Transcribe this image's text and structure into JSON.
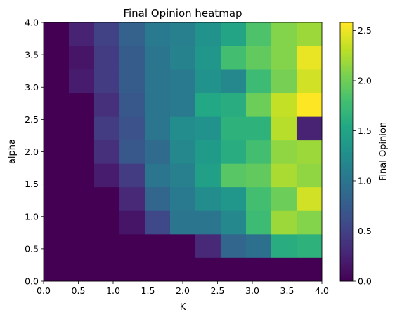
{
  "chart_data": {
    "type": "heatmap",
    "title": "Final Opinion heatmap",
    "xlabel": "K",
    "ylabel": "alpha",
    "colorbar_label": "Final Opinion",
    "colormap": "viridis",
    "xlim": [
      0,
      4
    ],
    "ylim": [
      0,
      4
    ],
    "vmin": 0,
    "vmax": 2.58,
    "x_ticks": [
      "0.0",
      "0.5",
      "1.0",
      "1.5",
      "2.0",
      "2.5",
      "3.0",
      "3.5",
      "4.0"
    ],
    "y_ticks": [
      "0.0",
      "0.5",
      "1.0",
      "1.5",
      "2.0",
      "2.5",
      "3.0",
      "3.5",
      "4.0"
    ],
    "colorbar_ticks": [
      "0.0",
      "0.5",
      "1.0",
      "1.5",
      "2.0",
      "2.5"
    ],
    "x_edges": [
      0,
      0.364,
      0.727,
      1.091,
      1.455,
      1.818,
      2.182,
      2.545,
      2.909,
      3.273,
      3.636,
      4.0
    ],
    "y_edges": [
      0,
      0.364,
      0.727,
      1.091,
      1.455,
      1.818,
      2.182,
      2.545,
      2.909,
      3.273,
      3.636,
      4.0
    ],
    "values": [
      [
        0.0,
        0.0,
        0.0,
        0.0,
        0.0,
        0.0,
        0.0,
        0.0,
        0.0,
        0.0,
        0.0
      ],
      [
        0.0,
        0.0,
        0.0,
        0.0,
        0.0,
        0.0,
        0.3,
        0.85,
        0.95,
        1.6,
        1.65
      ],
      [
        0.0,
        0.0,
        0.0,
        0.15,
        0.55,
        1.0,
        1.0,
        1.2,
        1.75,
        2.2,
        2.1
      ],
      [
        0.0,
        0.0,
        0.0,
        0.3,
        0.85,
        1.05,
        1.25,
        1.35,
        1.8,
        2.0,
        2.4
      ],
      [
        0.0,
        0.0,
        0.2,
        0.45,
        1.0,
        1.1,
        1.45,
        1.9,
        1.95,
        2.25,
        2.15
      ],
      [
        0.0,
        0.0,
        0.35,
        0.7,
        0.9,
        1.2,
        1.4,
        1.6,
        1.8,
        2.15,
        2.2
      ],
      [
        0.0,
        0.0,
        0.45,
        0.65,
        1.0,
        1.25,
        1.3,
        1.65,
        1.65,
        2.3,
        0.25
      ],
      [
        0.0,
        0.0,
        0.35,
        0.7,
        1.0,
        1.05,
        1.55,
        1.6,
        2.0,
        2.35,
        2.58
      ],
      [
        0.0,
        0.2,
        0.45,
        0.75,
        1.0,
        1.05,
        1.3,
        1.2,
        1.75,
        2.05,
        2.4
      ],
      [
        0.0,
        0.15,
        0.45,
        0.75,
        1.0,
        1.15,
        1.35,
        1.8,
        1.95,
        2.1,
        2.5
      ],
      [
        0.0,
        0.25,
        0.5,
        0.8,
        1.05,
        1.1,
        1.3,
        1.5,
        1.85,
        2.1,
        2.2
      ]
    ]
  }
}
